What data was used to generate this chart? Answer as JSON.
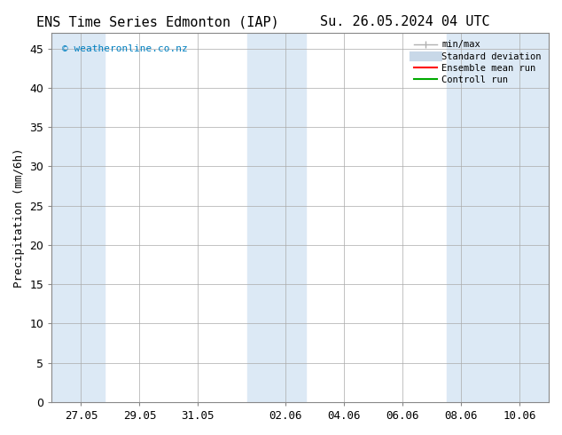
{
  "title_left": "ENS Time Series Edmonton (IAP)",
  "title_right": "Su. 26.05.2024 04 UTC",
  "ylabel": "Precipitation (mm/6h)",
  "watermark": "© weatheronline.co.nz",
  "watermark_color": "#007FBF",
  "ylim": [
    0,
    47
  ],
  "yticks": [
    0,
    5,
    10,
    15,
    20,
    25,
    30,
    35,
    40,
    45
  ],
  "xtick_positions": [
    1,
    3,
    5,
    8,
    10,
    12,
    14,
    16
  ],
  "xtick_labels": [
    "27.05",
    "29.05",
    "31.05",
    "02.06",
    "04.06",
    "06.06",
    "08.06",
    "10.06"
  ],
  "xlim": [
    0,
    17
  ],
  "band_positions": [
    [
      0.0,
      1.8
    ],
    [
      6.7,
      8.7
    ],
    [
      13.5,
      15.0
    ],
    [
      15.0,
      17.0
    ]
  ],
  "bg_color": "#ffffff",
  "plot_bg_color": "#ffffff",
  "band_color": "#dce9f5",
  "grid_color": "#aaaaaa",
  "legend_items": [
    {
      "label": "min/max",
      "color": "#b0b0b0",
      "lw": 1
    },
    {
      "label": "Standard deviation",
      "color": "#c8d8e8",
      "lw": 8
    },
    {
      "label": "Ensemble mean run",
      "color": "#ff0000",
      "lw": 1.5
    },
    {
      "label": "Controll run",
      "color": "#00aa00",
      "lw": 1.5
    }
  ],
  "title_fontsize": 11,
  "tick_fontsize": 9,
  "ylabel_fontsize": 9,
  "legend_fontsize": 7.5,
  "watermark_fontsize": 8
}
